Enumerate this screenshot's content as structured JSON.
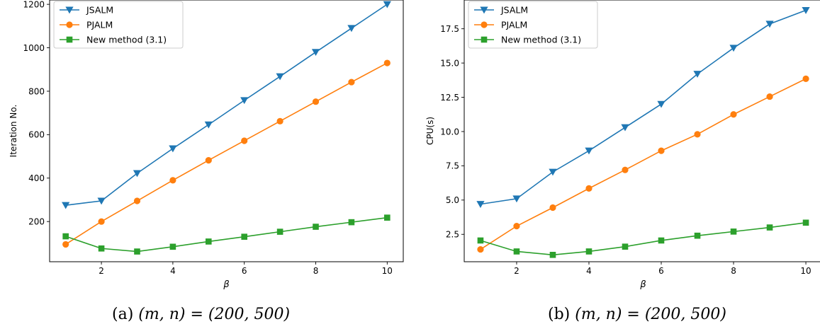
{
  "chart_data": [
    {
      "type": "line",
      "xlabel": "β",
      "ylabel": "Iteration No.",
      "caption_prefix": "(a)",
      "caption_math": "(m, n) = (200, 500)",
      "xlim": [
        0.55,
        10.45
      ],
      "ylim": [
        15,
        1220
      ],
      "xticks": [
        2,
        4,
        6,
        8,
        10
      ],
      "yticks": [
        200,
        400,
        600,
        800,
        1000,
        1200
      ],
      "legend": "top-left",
      "x": [
        1,
        2,
        3,
        4,
        5,
        6,
        7,
        8,
        9,
        10
      ],
      "series": [
        {
          "name": "JSALM",
          "color": "#1f77b4",
          "marker": "triangle-down",
          "values": [
            275,
            295,
            422,
            536,
            646,
            758,
            868,
            980,
            1090,
            1200
          ]
        },
        {
          "name": "PJALM",
          "color": "#ff7f0e",
          "marker": "circle",
          "values": [
            95,
            200,
            295,
            390,
            482,
            572,
            662,
            752,
            842,
            930
          ]
        },
        {
          "name": "New method (3.1)",
          "color": "#2ca02c",
          "marker": "square",
          "values": [
            132,
            76,
            62,
            84,
            108,
            130,
            153,
            176,
            197,
            218
          ]
        }
      ]
    },
    {
      "type": "line",
      "xlabel": "β",
      "ylabel": "CPU(s)",
      "caption_prefix": "(b)",
      "caption_math": "(m, n) = (200, 500)",
      "xlim": [
        0.55,
        10.45
      ],
      "ylim": [
        0.5,
        19.6
      ],
      "xticks": [
        2,
        4,
        6,
        8,
        10
      ],
      "yticks": [
        2.5,
        5.0,
        7.5,
        10.0,
        12.5,
        15.0,
        17.5
      ],
      "ytick_decimals": 1,
      "legend": "top-left",
      "x": [
        1,
        2,
        3,
        4,
        5,
        6,
        7,
        8,
        9,
        10
      ],
      "series": [
        {
          "name": "JSALM",
          "color": "#1f77b4",
          "marker": "triangle-down",
          "values": [
            4.7,
            5.1,
            7.05,
            8.6,
            10.3,
            12.0,
            14.2,
            16.1,
            17.85,
            18.85
          ]
        },
        {
          "name": "PJALM",
          "color": "#ff7f0e",
          "marker": "circle",
          "values": [
            1.4,
            3.1,
            4.45,
            5.85,
            7.2,
            8.6,
            9.8,
            11.25,
            12.55,
            13.85
          ]
        },
        {
          "name": "New method (3.1)",
          "color": "#2ca02c",
          "marker": "square",
          "values": [
            2.05,
            1.25,
            1.0,
            1.25,
            1.6,
            2.05,
            2.4,
            2.7,
            3.0,
            3.35
          ]
        }
      ]
    }
  ]
}
